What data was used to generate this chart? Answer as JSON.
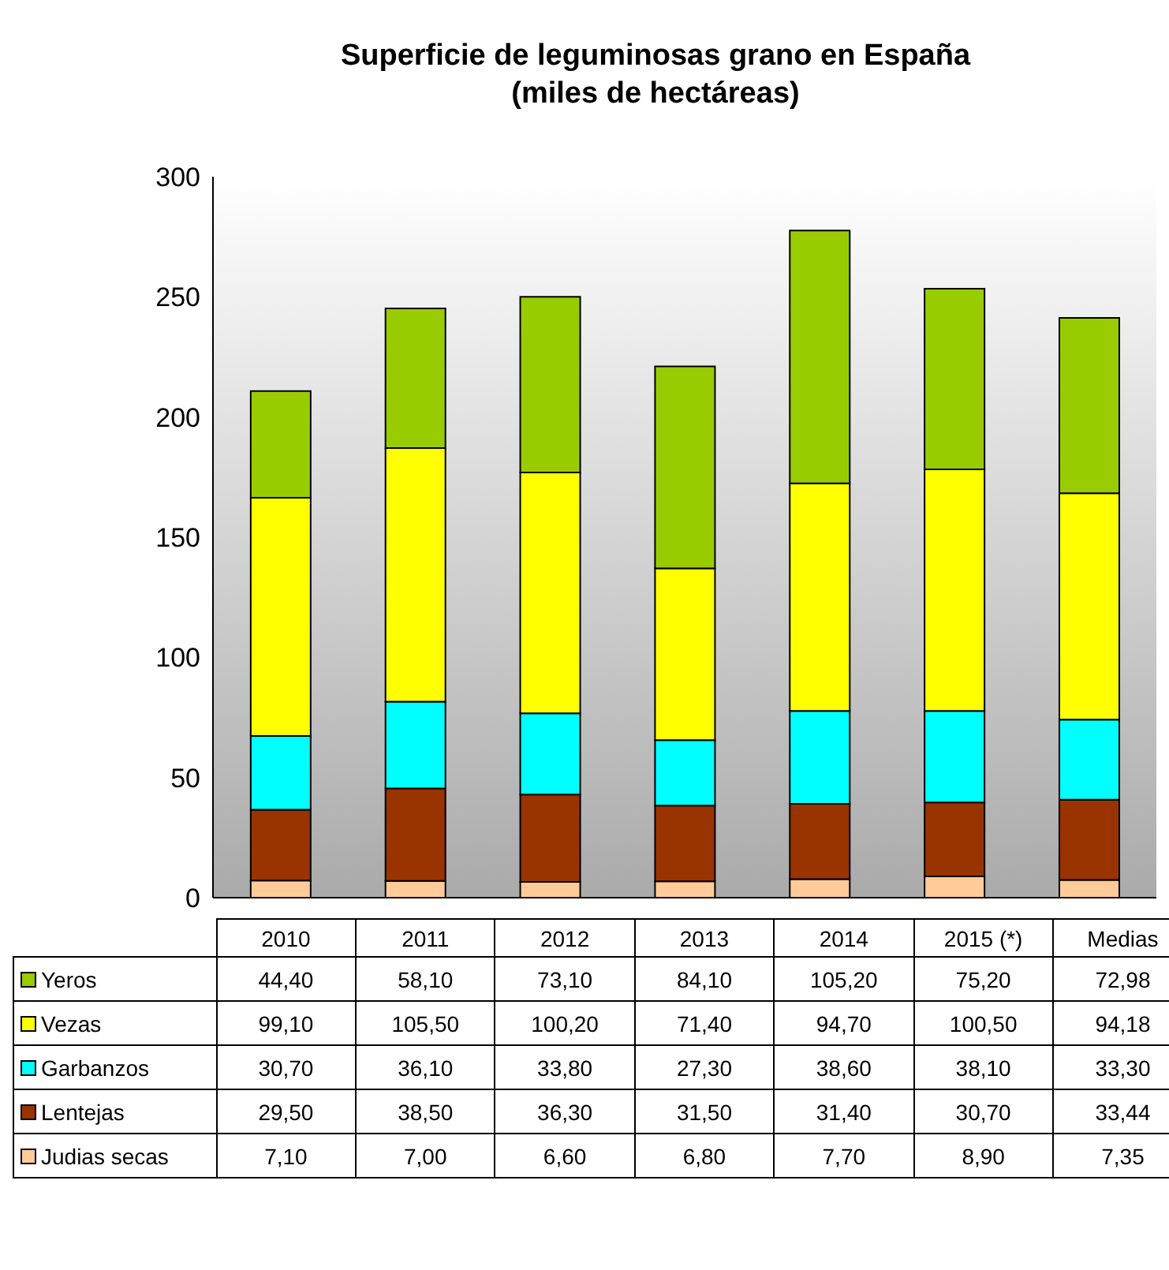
{
  "chart_data": {
    "type": "bar",
    "title": "Superficie de leguminosas grano en España",
    "subtitle": "(miles de hectáreas)",
    "categories": [
      "2010",
      "2011",
      "2012",
      "2013",
      "2014",
      "2015 (*)",
      "Medias"
    ],
    "stacked": true,
    "ylim": [
      0,
      300
    ],
    "yticks": [
      0,
      50,
      100,
      150,
      200,
      250,
      300
    ],
    "grid": false,
    "legend": "bottom",
    "series": [
      {
        "name": "Judias secas",
        "color": "#ffcc99",
        "values": [
          7.1,
          7.0,
          6.6,
          6.8,
          7.7,
          8.9,
          7.35
        ],
        "value_labels": [
          "7,10",
          "7,00",
          "6,60",
          "6,80",
          "7,70",
          "8,90",
          "7,35"
        ]
      },
      {
        "name": "Lentejas",
        "color": "#993300",
        "values": [
          29.5,
          38.5,
          36.3,
          31.5,
          31.4,
          30.7,
          33.44
        ],
        "value_labels": [
          "29,50",
          "38,50",
          "36,30",
          "31,50",
          "31,40",
          "30,70",
          "33,44"
        ]
      },
      {
        "name": "Garbanzos",
        "color": "#00ffff",
        "values": [
          30.7,
          36.1,
          33.8,
          27.3,
          38.6,
          38.1,
          33.3
        ],
        "value_labels": [
          "30,70",
          "36,10",
          "33,80",
          "27,30",
          "38,60",
          "38,10",
          "33,30"
        ]
      },
      {
        "name": "Vezas",
        "color": "#ffff00",
        "values": [
          99.1,
          105.5,
          100.2,
          71.4,
          94.7,
          100.5,
          94.18
        ],
        "value_labels": [
          "99,10",
          "105,50",
          "100,20",
          "71,40",
          "94,70",
          "100,50",
          "94,18"
        ]
      },
      {
        "name": "Yeros",
        "color": "#99cc00",
        "values": [
          44.4,
          58.1,
          73.1,
          84.1,
          105.2,
          75.2,
          72.98
        ],
        "value_labels": [
          "44,40",
          "58,10",
          "73,10",
          "84,10",
          "105,20",
          "75,20",
          "72,98"
        ]
      }
    ]
  }
}
